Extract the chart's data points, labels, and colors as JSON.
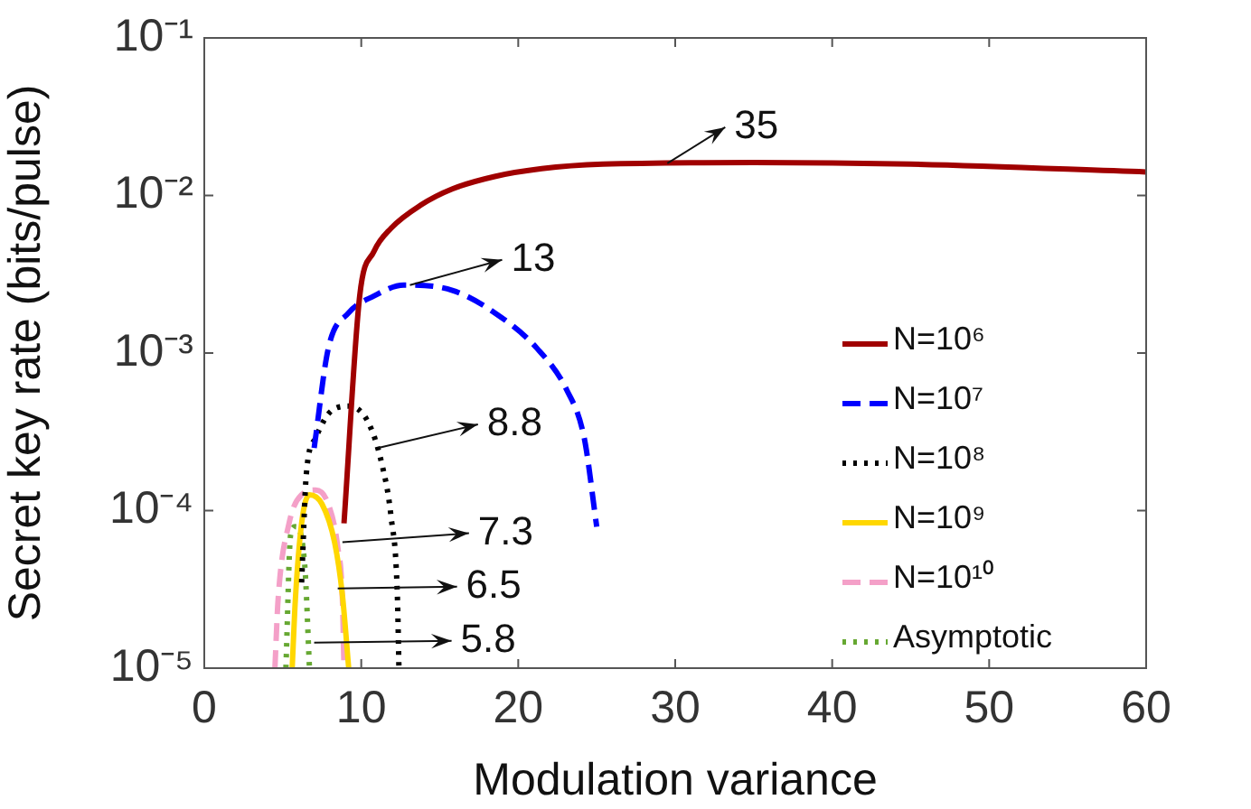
{
  "chart_data": {
    "type": "line",
    "xlabel": "Modulation variance",
    "ylabel": "Secret key rate (bits/pulse)",
    "log": "y",
    "xlim": [
      0,
      60
    ],
    "xticks": [
      0,
      10,
      20,
      30,
      40,
      50,
      60
    ],
    "ylim": [
      1e-05,
      0.1
    ],
    "yticks": [
      {
        "value": 1e-05,
        "label": "10⁻⁵"
      },
      {
        "value": 0.0001,
        "label": "10⁻⁴"
      },
      {
        "value": 0.001,
        "label": "10⁻³"
      },
      {
        "value": 0.01,
        "label": "10⁻²"
      },
      {
        "value": 0.1,
        "label": "10⁻¹"
      }
    ],
    "grid": false,
    "legend": "bottom right",
    "marker": "none",
    "series": [
      {
        "name": "N=10⁶",
        "color": "#a00000",
        "line_style": "solid",
        "x": [
          8.9,
          9.9,
          10.8,
          11.9,
          13.8,
          15.8,
          18.5,
          21.5,
          25.4,
          35,
          45,
          60
        ],
        "values": [
          8.3e-05,
          0.0023,
          0.0044,
          0.0062,
          0.0087,
          0.011,
          0.0132,
          0.0148,
          0.0158,
          0.0162,
          0.0158,
          0.0141
        ]
      },
      {
        "name": "N=10⁷",
        "color": "#0000ff",
        "line_style": "dashed",
        "x": [
          7.0,
          7.9,
          9.2,
          10.8,
          12.7,
          15.8,
          18.5,
          21.2,
          23.1,
          24.2,
          25
        ],
        "values": [
          0.00025,
          0.00107,
          0.0018,
          0.0023,
          0.0027,
          0.0025,
          0.0018,
          0.00107,
          0.00058,
          0.00029,
          7.9e-05
        ]
      },
      {
        "name": "N=10⁸",
        "color": "#000000",
        "line_style": "dotted",
        "x": [
          6.2,
          6.5,
          7.1,
          8.1,
          9.2,
          10.4,
          11.3,
          11.9,
          12.3,
          12.4
        ],
        "values": [
          3.5e-05,
          0.00017,
          0.00029,
          0.00043,
          0.00046,
          0.00037,
          0.0002,
          9.1e-05,
          2.9e-05,
          1e-05
        ]
      },
      {
        "name": "N=10⁹",
        "color": "#ffd700",
        "line_style": "solid",
        "x": [
          5.6,
          5.8,
          6.2,
          6.7,
          7.5,
          8.3,
          8.8,
          9.2
        ],
        "values": [
          1e-05,
          2.7e-05,
          8.3e-05,
          0.000126,
          0.00011,
          6.3e-05,
          2.9e-05,
          1e-05
        ]
      },
      {
        "name": "N=10¹⁰",
        "color": "#f4a0c8",
        "line_style": "dashed",
        "x": [
          4.5,
          4.7,
          5.4,
          6.2,
          7.1,
          7.9,
          8.5,
          8.8,
          8.9
        ],
        "values": [
          1e-05,
          2.7e-05,
          8.3e-05,
          0.000126,
          0.000135,
          0.00011,
          5.9e-05,
          2.7e-05,
          1e-05
        ]
      },
      {
        "name": "Asymptotic",
        "color": "#66a832",
        "line_style": "dotted",
        "x": [
          5.2,
          5.5,
          5.8,
          6.4,
          6.7
        ],
        "values": [
          1e-05,
          7e-05,
          7.9e-05,
          4.5e-05,
          1e-05
        ]
      }
    ],
    "annotations": [
      {
        "text": "35",
        "x": 29.5,
        "y": 0.016
      },
      {
        "text": "13",
        "x": 13.1,
        "y": 0.0027
      },
      {
        "text": "8.8",
        "x": 11.1,
        "y": 0.00025
      },
      {
        "text": "7.3",
        "x": 8.8,
        "y": 6.3e-05
      },
      {
        "text": "6.5",
        "x": 8.5,
        "y": 3.2e-05
      },
      {
        "text": "5.8",
        "x": 7.0,
        "y": 1.45e-05
      }
    ]
  }
}
